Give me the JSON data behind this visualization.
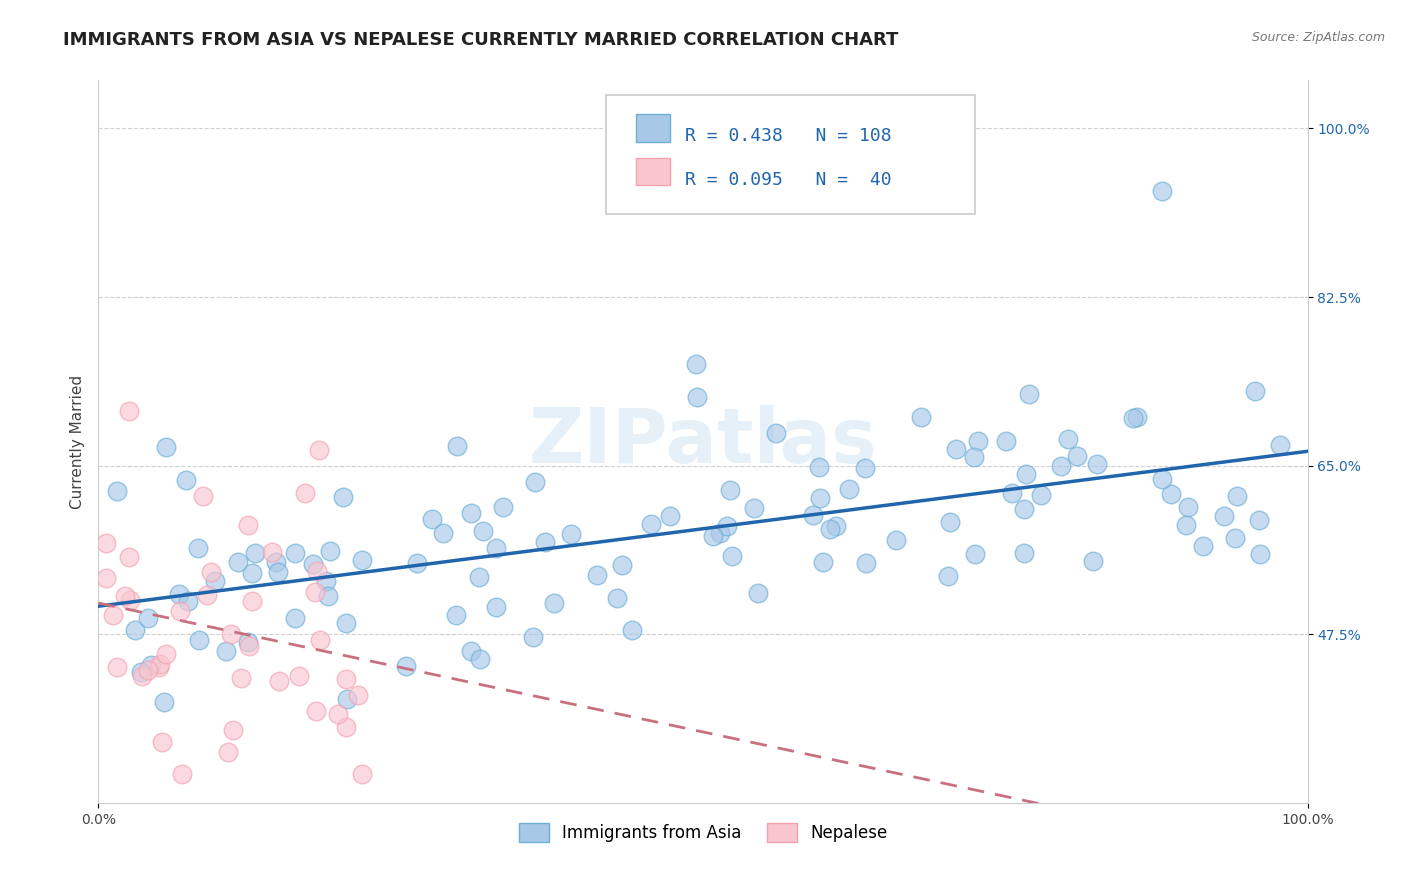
{
  "title": "IMMIGRANTS FROM ASIA VS NEPALESE CURRENTLY MARRIED CORRELATION CHART",
  "source_text": "Source: ZipAtlas.com",
  "ylabel": "Currently Married",
  "xlim": [
    0.0,
    1.0
  ],
  "ylim": [
    0.3,
    1.05
  ],
  "y_ticks": [
    0.475,
    0.65,
    0.825,
    1.0
  ],
  "y_tick_labels": [
    "47.5%",
    "65.0%",
    "82.5%",
    "100.0%"
  ],
  "x_tick_labels": [
    "0.0%",
    "100.0%"
  ],
  "legend_labels_bottom": [
    "Immigrants from Asia",
    "Nepalese"
  ],
  "blue_fill": "#a8c8e8",
  "blue_edge": "#6baed6",
  "pink_fill": "#f9c6d0",
  "pink_edge": "#f4a0b0",
  "line_blue": "#2166ac",
  "line_pink": "#c97080",
  "r_blue": 0.438,
  "n_blue": 108,
  "r_pink": 0.095,
  "n_pink": 40,
  "watermark": "ZIPatlas",
  "title_fontsize": 13,
  "label_fontsize": 11,
  "tick_fontsize": 10,
  "legend_fontsize": 12,
  "stat_fontsize": 13,
  "scatter_size": 180,
  "scatter_alpha": 0.65
}
